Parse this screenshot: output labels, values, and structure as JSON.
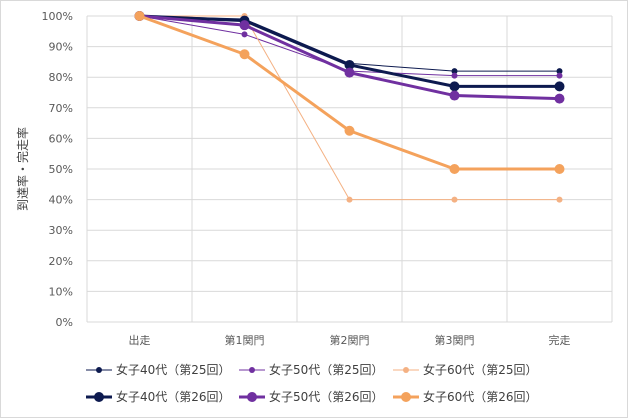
{
  "chart_data": {
    "type": "line",
    "title": "",
    "xlabel": "",
    "ylabel": "到達率・完走率",
    "categories": [
      "出走",
      "第1関門",
      "第2関門",
      "第3関門",
      "完走"
    ],
    "ylim": [
      0,
      100
    ],
    "y_tick_labels": [
      "0%",
      "10%",
      "20%",
      "30%",
      "40%",
      "50%",
      "60%",
      "70%",
      "80%",
      "90%",
      "100%"
    ],
    "grid": true,
    "legend_position": "bottom",
    "series": [
      {
        "name": "女子40代（第25回）",
        "values": [
          100,
          99,
          84.5,
          82,
          82
        ],
        "color": "#0d1a4f",
        "weight": "thin"
      },
      {
        "name": "女子50代（第25回）",
        "values": [
          100,
          94,
          82,
          80.5,
          80.5
        ],
        "color": "#7030a0",
        "weight": "thin"
      },
      {
        "name": "女子60代（第25回）",
        "values": [
          100,
          100,
          40,
          40,
          40
        ],
        "color": "#f4b183",
        "weight": "thin"
      },
      {
        "name": "女子40代（第26回）",
        "values": [
          100,
          98.5,
          84,
          77,
          77
        ],
        "color": "#0d1a4f",
        "weight": "thick"
      },
      {
        "name": "女子50代（第26回）",
        "values": [
          100,
          97,
          81.5,
          74,
          73
        ],
        "color": "#7030a0",
        "weight": "thick"
      },
      {
        "name": "女子60代（第26回）",
        "values": [
          100,
          87.5,
          62.5,
          50,
          50
        ],
        "color": "#f4a25c",
        "weight": "thick"
      }
    ]
  }
}
